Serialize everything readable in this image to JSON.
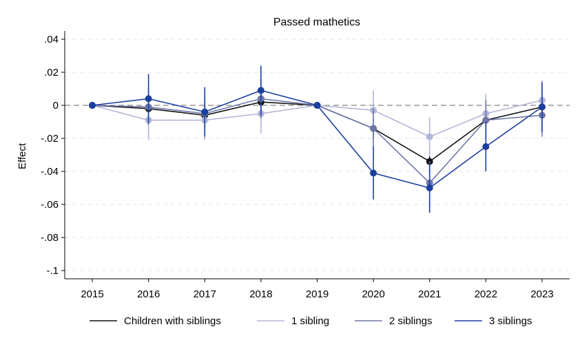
{
  "chart_data": {
    "type": "line",
    "title": "Passed mathetics",
    "xlabel": "",
    "ylabel": "Effect",
    "x": [
      2015,
      2016,
      2017,
      2018,
      2019,
      2020,
      2021,
      2022,
      2023
    ],
    "x_tick_labels": [
      "2015",
      "2016",
      "2017",
      "2018",
      "2019",
      "2020",
      "2021",
      "2022",
      "2023"
    ],
    "ylim": [
      -0.105,
      0.045
    ],
    "y_ticks": [
      0.04,
      0.02,
      0,
      -0.02,
      -0.04,
      -0.06,
      -0.08,
      -0.1
    ],
    "y_tick_labels": [
      ".04",
      ".02",
      "0",
      "-.02",
      "-.04",
      "-.06",
      "-.08",
      "-.1"
    ],
    "grid": true,
    "reference_line": 0,
    "legend_position": "bottom",
    "series": [
      {
        "name": "Children with siblings",
        "color": "#111111",
        "values": [
          0,
          -0.002,
          -0.006,
          0.002,
          0,
          -0.014,
          -0.034,
          -0.009,
          -0.001
        ],
        "ci_low": [
          0,
          -0.008,
          -0.014,
          -0.006,
          0,
          -0.02,
          -0.04,
          -0.013,
          -0.006
        ],
        "ci_high": [
          0,
          0.004,
          0.002,
          0.01,
          0,
          -0.008,
          -0.028,
          -0.005,
          0.004
        ]
      },
      {
        "name": "1 sibling",
        "color": "#b0b6d8",
        "values": [
          0,
          -0.009,
          -0.009,
          -0.005,
          0,
          -0.003,
          -0.019,
          -0.005,
          0.003
        ],
        "ci_low": [
          0,
          -0.021,
          -0.021,
          -0.017,
          0,
          -0.015,
          -0.031,
          -0.017,
          -0.009
        ],
        "ci_high": [
          0,
          0.003,
          0.003,
          0.007,
          0,
          0.009,
          -0.007,
          0.007,
          0.015
        ]
      },
      {
        "name": "2 siblings",
        "color": "#6e77a8",
        "values": [
          0,
          -0.001,
          -0.005,
          0.004,
          0,
          -0.014,
          -0.047,
          -0.009,
          -0.006
        ],
        "ci_low": [
          0,
          -0.012,
          -0.017,
          -0.008,
          0,
          -0.026,
          -0.06,
          -0.021,
          -0.019
        ],
        "ci_high": [
          0,
          0.01,
          0.007,
          0.016,
          0,
          -0.002,
          -0.034,
          0.003,
          0.007
        ]
      },
      {
        "name": "3 siblings",
        "color": "#1b3f9f",
        "values": [
          0,
          0.004,
          -0.004,
          0.009,
          0,
          -0.041,
          -0.05,
          -0.025,
          -0.001
        ],
        "ci_low": [
          0,
          -0.011,
          -0.019,
          -0.006,
          0,
          -0.057,
          -0.065,
          -0.04,
          -0.016
        ],
        "ci_high": [
          0,
          0.019,
          0.011,
          0.024,
          0,
          -0.025,
          -0.035,
          -0.01,
          0.014
        ]
      }
    ]
  }
}
